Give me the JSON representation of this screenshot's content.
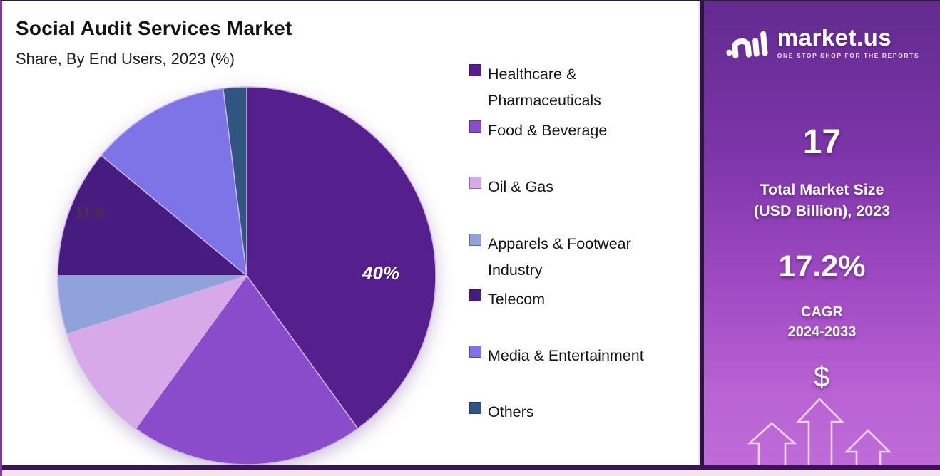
{
  "title": "Social Audit Services Market",
  "subtitle": "Share, By End Users, 2023 (%)",
  "chart_data": {
    "type": "pie",
    "title": "Social Audit Services Market",
    "subtitle": "Share, By End Users, 2023 (%)",
    "unit": "%",
    "categories": [
      "Healthcare & Pharmaceuticals",
      "Food & Beverage",
      "Oil & Gas",
      "Apparels & Footwear Industry",
      "Telecom",
      "Media & Entertainment",
      "Others"
    ],
    "values": [
      40,
      20,
      10,
      5,
      11,
      12,
      2
    ],
    "colors": [
      "#55208E",
      "#8B4CCB",
      "#D7A9E8",
      "#8FA3DA",
      "#471C80",
      "#7D74E8",
      "#2F5580"
    ],
    "data_labels": [
      "40%",
      "",
      "",
      "",
      "11%",
      "",
      ""
    ],
    "start_angle_deg": 0,
    "direction": "clockwise",
    "legend_position": "right",
    "slice_stroke_color": "#CBB3E8"
  },
  "panel": {
    "brand_name": "market.us",
    "brand_tagline": "ONE STOP SHOP FOR THE REPORTS",
    "market_size_value": "17",
    "market_size_label_line1": "Total Market Size",
    "market_size_label_line2": "(USD Billion), 2023",
    "cagr_value": "17.2%",
    "cagr_label_line1": "CAGR",
    "cagr_label_line2": "2024-2033",
    "currency_symbol": "$",
    "gradient_top": "#622B8F",
    "gradient_bottom": "#BE6BD8"
  }
}
